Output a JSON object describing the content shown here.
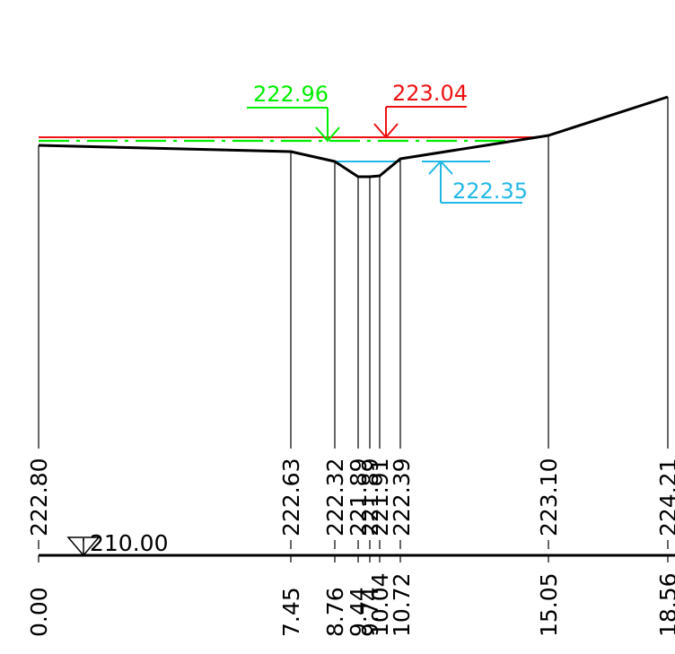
{
  "datum": {
    "label": "210.00"
  },
  "water_levels": [
    {
      "label": "222.96",
      "color": "#00ee00"
    },
    {
      "label": "223.04",
      "color": "#ee1111"
    },
    {
      "label": "222.35",
      "color": "#22b8e6"
    }
  ],
  "stations": [
    {
      "distance": "0.00",
      "elevation": "222.80"
    },
    {
      "distance": "7.45",
      "elevation": "222.63"
    },
    {
      "distance": "8.76",
      "elevation": "222.32"
    },
    {
      "distance": "9.44",
      "elevation": "221.89"
    },
    {
      "distance": "9.74",
      "elevation": "221.89"
    },
    {
      "distance": "10.04",
      "elevation": "221.91"
    },
    {
      "distance": "10.72",
      "elevation": "222.39"
    },
    {
      "distance": "15.05",
      "elevation": "223.10"
    },
    {
      "distance": "18.56",
      "elevation": "224.21"
    }
  ]
}
